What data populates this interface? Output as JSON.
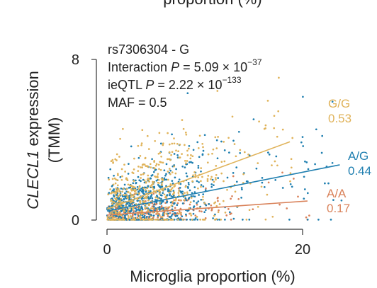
{
  "chart_data": {
    "type": "scatter",
    "top_cut_text": "proportion (%)",
    "xlabel": "Microglia proportion (%)",
    "ylabel": {
      "gene": "CLECL1",
      "rest": " expression",
      "unit": "(TMM)"
    },
    "xlim": [
      0,
      25
    ],
    "ylim": [
      0,
      8
    ],
    "x_ticks": [
      {
        "value": 0,
        "label": "0"
      },
      {
        "value": 20,
        "label": "20"
      }
    ],
    "y_ticks": [
      {
        "value": 0,
        "label": "0"
      },
      {
        "value": 8,
        "label": "8"
      }
    ],
    "annotations": {
      "snp": "rs7306304 - G",
      "interaction_prefix": "Interaction ",
      "interaction_p": "P",
      "interaction_mid": " = 5.09 × 10",
      "interaction_exp": "−37",
      "ieqtl_prefix": "ieQTL ",
      "ieqtl_p": "P",
      "ieqtl_mid": " = 2.22 × 10",
      "ieqtl_exp": "−133",
      "maf": "MAF = 0.5"
    },
    "series": [
      {
        "name": "G/G",
        "slope_label": "0.53",
        "color": "#e0b35a",
        "line": {
          "x": [
            0,
            18.7
          ],
          "y": [
            0.55,
            3.9
          ]
        },
        "point_count": 560
      },
      {
        "name": "A/G",
        "slope_label": "0.44",
        "color": "#1f7fb0",
        "line": {
          "x": [
            0,
            23.8
          ],
          "y": [
            0.45,
            2.75
          ]
        },
        "point_count": 760
      },
      {
        "name": "A/A",
        "slope_label": "0.17",
        "color": "#d9825a",
        "line": {
          "x": [
            0,
            20.5
          ],
          "y": [
            0.25,
            0.95
          ]
        },
        "point_count": 260
      }
    ]
  }
}
